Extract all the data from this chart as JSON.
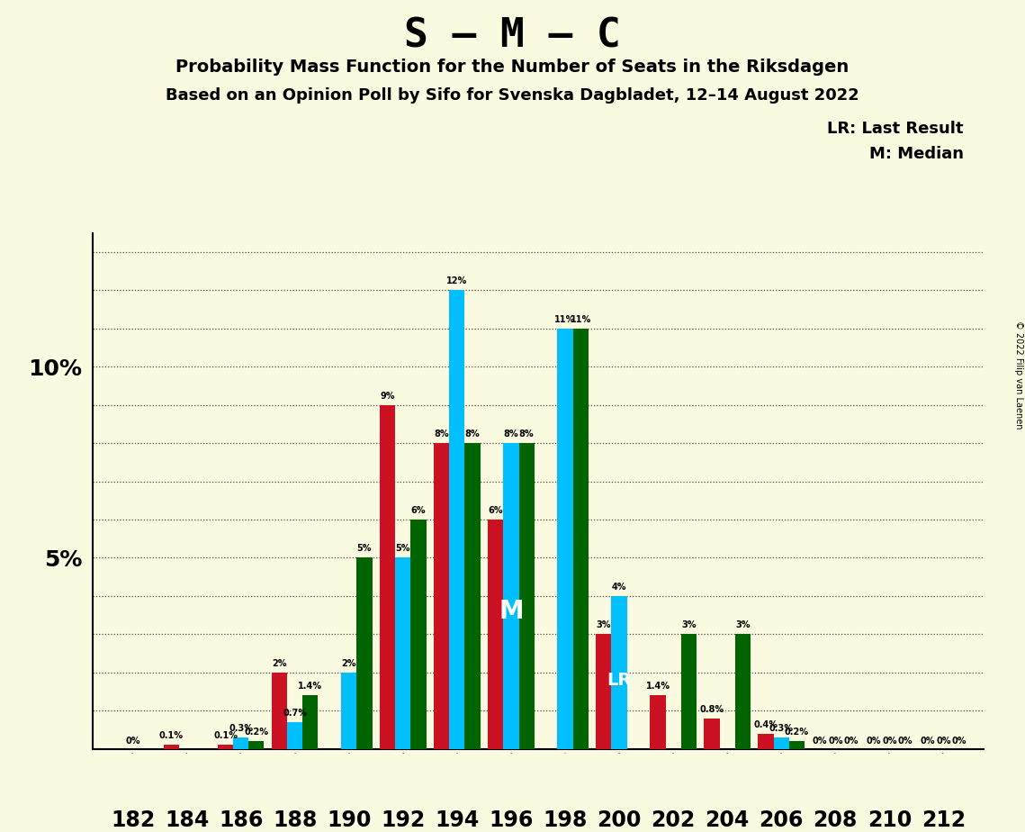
{
  "title_main": "S – M – C",
  "title_sub1": "Probability Mass Function for the Number of Seats in the Riksdagen",
  "title_sub2": "Based on an Opinion Poll by Sifo for Svenska Dagbladet, 12–14 August 2022",
  "copyright": "© 2022 Filip van Laenen",
  "legend_lr": "LR: Last Result",
  "legend_m": "M: Median",
  "seats": [
    182,
    184,
    186,
    188,
    190,
    192,
    194,
    196,
    198,
    200,
    202,
    204,
    206,
    208,
    210,
    212
  ],
  "colors": {
    "green": "#006400",
    "red": "#CC1122",
    "blue": "#00BFFF"
  },
  "background_color": "#FAFAE0",
  "bar_width": 0.9,
  "ylim": [
    0,
    13.5
  ],
  "red_values": [
    0.0,
    0.1,
    0.1,
    2.0,
    0.0,
    9.0,
    8.0,
    6.0,
    0.0,
    3.0,
    1.4,
    0.8,
    0.4,
    0.0,
    0.0,
    0.0
  ],
  "blue_values": [
    0.0,
    0.0,
    0.3,
    0.7,
    2.0,
    5.0,
    12.0,
    8.0,
    11.0,
    4.0,
    0.0,
    0.0,
    0.3,
    0.0,
    0.0,
    0.0
  ],
  "green_values": [
    0.0,
    0.0,
    0.2,
    1.4,
    5.0,
    6.0,
    8.0,
    8.0,
    11.0,
    0.0,
    3.0,
    3.0,
    0.2,
    0.0,
    0.0,
    0.0
  ],
  "red_labels": [
    null,
    "0.1%",
    "0.1%",
    "2%",
    null,
    "9%",
    "8%",
    "6%",
    null,
    "3%",
    "1.4%",
    "0.8%",
    "0.4%",
    "0%",
    "0%",
    "0%"
  ],
  "blue_labels": [
    "0%",
    null,
    "0.3%",
    "0.7%",
    "2%",
    "5%",
    "12%",
    "8%",
    "11%",
    "4%",
    null,
    null,
    "0.3%",
    "0%",
    "0%",
    "0%"
  ],
  "green_labels": [
    null,
    null,
    "0.2%",
    "1.4%",
    "5%",
    "6%",
    "8%",
    "8%",
    "11%",
    null,
    "3%",
    "3%",
    "0.2%",
    "0%",
    "0%",
    "0%"
  ],
  "median_seat": 196,
  "lr_seat": 200,
  "median_color": "blue",
  "lr_color": "blue"
}
